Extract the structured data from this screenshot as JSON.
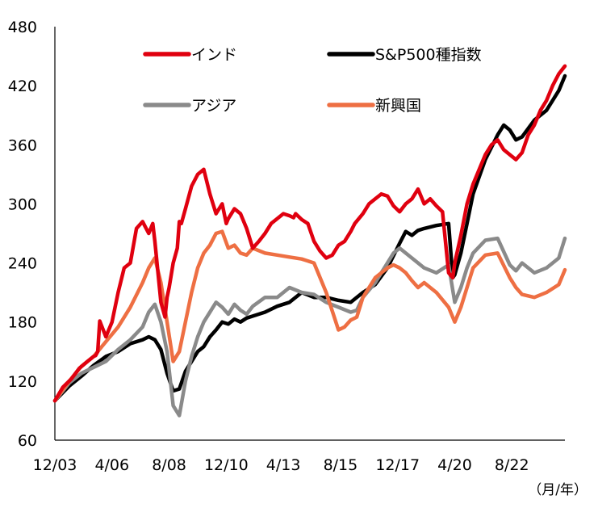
{
  "chart_data": {
    "type": "line",
    "y_ticks": [
      60,
      120,
      180,
      240,
      300,
      360,
      420,
      480
    ],
    "ylim": [
      60,
      480
    ],
    "x_tick_labels": [
      "12/03",
      "4/06",
      "8/08",
      "12/10",
      "4/13",
      "8/15",
      "12/17",
      "4/20",
      "8/22"
    ],
    "x_tick_positions": [
      2003.917,
      2006.25,
      2008.583,
      2010.917,
      2013.25,
      2015.583,
      2017.917,
      2020.25,
      2022.583
    ],
    "xlim": [
      2003.917,
      2024.75
    ],
    "unit_label": "（月/年）",
    "grid": false,
    "legend_position": "top (two columns)",
    "series": [
      {
        "name": "インド",
        "color": "#e0000f",
        "x": [
          2003.917,
          2004.25,
          2004.583,
          2004.917,
          2005.25,
          2005.5,
          2005.583,
          2005.667,
          2005.75,
          2006.0,
          2006.25,
          2006.5,
          2006.75,
          2007.0,
          2007.25,
          2007.5,
          2007.75,
          2007.917,
          2008.0,
          2008.25,
          2008.417,
          2008.5,
          2008.583,
          2008.75,
          2008.917,
          2009.0,
          2009.083,
          2009.25,
          2009.5,
          2009.75,
          2010.0,
          2010.25,
          2010.5,
          2010.75,
          2010.917,
          2011.0,
          2011.25,
          2011.5,
          2011.75,
          2012.0,
          2012.25,
          2012.5,
          2012.75,
          2013.0,
          2013.25,
          2013.5,
          2013.667,
          2013.75,
          2014.0,
          2014.25,
          2014.5,
          2014.75,
          2015.0,
          2015.25,
          2015.5,
          2015.75,
          2016.0,
          2016.167,
          2016.5,
          2016.75,
          2017.0,
          2017.25,
          2017.5,
          2017.75,
          2018.0,
          2018.25,
          2018.5,
          2018.75,
          2019.0,
          2019.25,
          2019.5,
          2019.75,
          2020.0,
          2020.167,
          2020.25,
          2020.5,
          2020.75,
          2021.0,
          2021.25,
          2021.5,
          2021.75,
          2022.0,
          2022.25,
          2022.5,
          2022.75,
          2023.0,
          2023.25,
          2023.5,
          2023.75,
          2024.0,
          2024.25,
          2024.5,
          2024.75
        ],
        "values": [
          100,
          114,
          122,
          133,
          140,
          145,
          146,
          150,
          181,
          165,
          180,
          210,
          235,
          240,
          275,
          282,
          270,
          280,
          262,
          200,
          185,
          205,
          215,
          240,
          255,
          282,
          280,
          295,
          318,
          330,
          335,
          310,
          290,
          300,
          280,
          285,
          295,
          290,
          275,
          255,
          262,
          270,
          280,
          285,
          290,
          288,
          286,
          290,
          284,
          280,
          262,
          252,
          245,
          248,
          258,
          262,
          272,
          280,
          290,
          300,
          305,
          310,
          308,
          298,
          292,
          300,
          305,
          315,
          300,
          305,
          298,
          292,
          230,
          225,
          240,
          268,
          300,
          320,
          335,
          350,
          360,
          365,
          355,
          350,
          345,
          352,
          370,
          380,
          395,
          405,
          420,
          432,
          440
        ]
      },
      {
        "name": "S&P500種指数",
        "color": "#000000",
        "x": [
          2003.917,
          2004.5,
          2005.0,
          2005.5,
          2006.0,
          2006.5,
          2007.0,
          2007.5,
          2007.75,
          2008.0,
          2008.25,
          2008.5,
          2008.75,
          2009.0,
          2009.25,
          2009.5,
          2009.75,
          2010.0,
          2010.25,
          2010.5,
          2010.75,
          2011.0,
          2011.25,
          2011.5,
          2011.75,
          2012.0,
          2012.5,
          2013.0,
          2013.5,
          2014.0,
          2014.5,
          2015.0,
          2015.5,
          2016.0,
          2016.5,
          2017.0,
          2017.5,
          2018.0,
          2018.25,
          2018.5,
          2018.75,
          2019.0,
          2019.5,
          2020.0,
          2020.167,
          2020.25,
          2020.5,
          2020.75,
          2021.0,
          2021.5,
          2022.0,
          2022.25,
          2022.5,
          2022.75,
          2023.0,
          2023.5,
          2024.0,
          2024.5,
          2024.75
        ],
        "values": [
          100,
          115,
          125,
          136,
          145,
          150,
          158,
          162,
          165,
          162,
          152,
          128,
          110,
          112,
          130,
          140,
          150,
          155,
          165,
          172,
          180,
          178,
          183,
          180,
          184,
          186,
          190,
          196,
          200,
          210,
          205,
          205,
          202,
          200,
          210,
          218,
          235,
          260,
          272,
          268,
          273,
          275,
          278,
          280,
          225,
          228,
          250,
          280,
          310,
          345,
          370,
          380,
          375,
          365,
          368,
          385,
          395,
          415,
          430
        ]
      },
      {
        "name": "アジア",
        "color": "#8a8a8a",
        "x": [
          2003.917,
          2004.5,
          2005.0,
          2005.5,
          2006.0,
          2006.5,
          2007.0,
          2007.5,
          2007.75,
          2008.0,
          2008.25,
          2008.5,
          2008.75,
          2009.0,
          2009.25,
          2009.5,
          2009.75,
          2010.0,
          2010.25,
          2010.5,
          2010.75,
          2011.0,
          2011.25,
          2011.5,
          2011.75,
          2012.0,
          2012.5,
          2013.0,
          2013.5,
          2014.0,
          2014.5,
          2015.0,
          2015.5,
          2016.0,
          2016.25,
          2016.5,
          2017.0,
          2017.5,
          2017.75,
          2018.0,
          2018.25,
          2018.5,
          2018.75,
          2019.0,
          2019.5,
          2020.0,
          2020.25,
          2020.5,
          2020.75,
          2021.0,
          2021.5,
          2022.0,
          2022.5,
          2022.75,
          2023.0,
          2023.5,
          2024.0,
          2024.5,
          2024.75
        ],
        "values": [
          100,
          118,
          128,
          134,
          140,
          152,
          162,
          175,
          190,
          198,
          180,
          150,
          95,
          85,
          120,
          145,
          165,
          180,
          190,
          200,
          195,
          188,
          198,
          192,
          188,
          196,
          205,
          205,
          215,
          210,
          208,
          200,
          195,
          190,
          192,
          205,
          220,
          240,
          250,
          255,
          250,
          245,
          240,
          235,
          230,
          238,
          200,
          215,
          235,
          250,
          263,
          265,
          238,
          232,
          240,
          230,
          235,
          245,
          265
        ]
      },
      {
        "name": "新興国",
        "color": "#ee6f43",
        "x": [
          2003.917,
          2004.5,
          2005.0,
          2005.5,
          2006.0,
          2006.5,
          2007.0,
          2007.5,
          2007.75,
          2008.0,
          2008.25,
          2008.5,
          2008.75,
          2009.0,
          2009.25,
          2009.5,
          2009.75,
          2010.0,
          2010.25,
          2010.5,
          2010.75,
          2011.0,
          2011.25,
          2011.5,
          2011.75,
          2012.0,
          2012.5,
          2013.0,
          2013.5,
          2014.0,
          2014.5,
          2015.0,
          2015.5,
          2015.75,
          2016.0,
          2016.25,
          2016.5,
          2017.0,
          2017.5,
          2017.75,
          2018.0,
          2018.25,
          2018.5,
          2018.75,
          2019.0,
          2019.5,
          2020.0,
          2020.25,
          2020.5,
          2020.75,
          2021.0,
          2021.5,
          2022.0,
          2022.5,
          2022.75,
          2023.0,
          2023.5,
          2024.0,
          2024.5,
          2024.75
        ],
        "values": [
          100,
          120,
          135,
          145,
          160,
          175,
          195,
          220,
          235,
          245,
          220,
          180,
          140,
          150,
          180,
          210,
          235,
          250,
          258,
          270,
          272,
          255,
          258,
          250,
          248,
          255,
          250,
          248,
          246,
          244,
          240,
          210,
          172,
          175,
          182,
          185,
          205,
          225,
          235,
          238,
          235,
          230,
          222,
          215,
          220,
          210,
          195,
          180,
          195,
          215,
          235,
          248,
          250,
          225,
          215,
          208,
          205,
          210,
          218,
          233
        ]
      }
    ]
  }
}
